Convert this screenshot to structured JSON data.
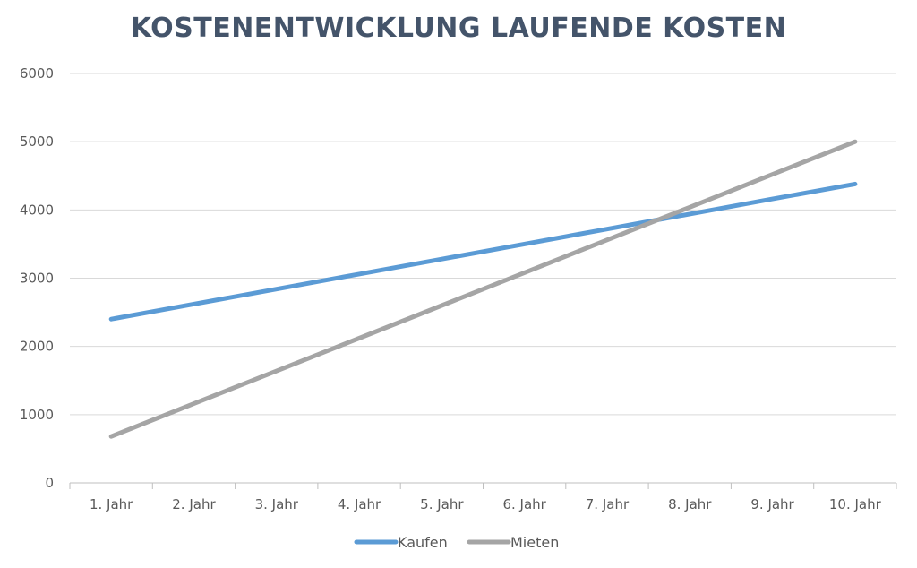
{
  "chart_data": {
    "type": "line",
    "title": "KOSTENENTWICKLUNG LAUFENDE KOSTEN",
    "categories": [
      "1. Jahr",
      "2. Jahr",
      "3. Jahr",
      "4. Jahr",
      "5. Jahr",
      "6. Jahr",
      "7. Jahr",
      "8. Jahr",
      "9. Jahr",
      "10. Jahr"
    ],
    "series": [
      {
        "name": "Kaufen",
        "color": "#5b9bd5",
        "values": [
          2400,
          2620,
          2840,
          3060,
          3280,
          3500,
          3720,
          3940,
          4160,
          4380
        ]
      },
      {
        "name": "Mieten",
        "color": "#a5a5a5",
        "values": [
          680,
          1160,
          1640,
          2120,
          2600,
          3080,
          3560,
          4040,
          4520,
          5000
        ]
      }
    ],
    "xlabel": "",
    "ylabel": "",
    "ylim": [
      0,
      6000
    ],
    "yticks": [
      "0",
      "1000",
      "2000",
      "3000",
      "4000",
      "5000",
      "6000"
    ],
    "grid": true,
    "legend": "bottom",
    "colors": {
      "gridline": "#d9d9d9",
      "axis": "#bfbfbf",
      "title": "#44546a",
      "text": "#595959"
    }
  }
}
